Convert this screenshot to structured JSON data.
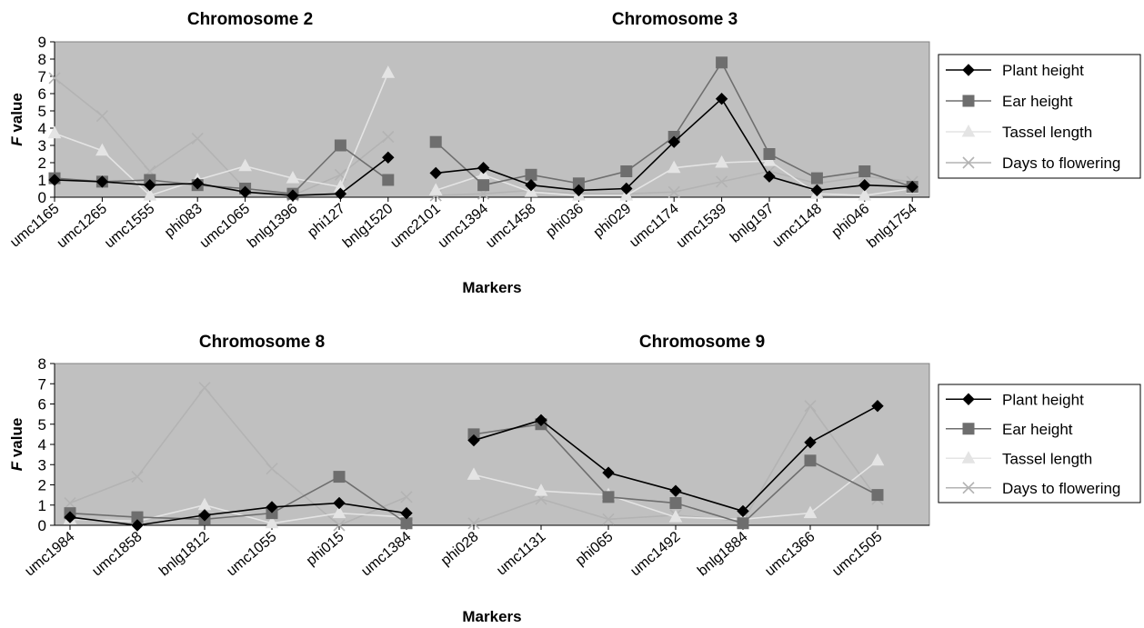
{
  "legend_entries": [
    "Plant height",
    "Ear height",
    "Tassel length",
    "Days to flowering"
  ],
  "series_colors": {
    "Plant height": "#000000",
    "Ear height": "#6e6e6e",
    "Tassel length": "#e4e4e4",
    "Days to flowering": "#b3b3b3"
  },
  "series_markers": {
    "Plant height": "diamond",
    "Ear height": "square",
    "Tassel length": "triangle",
    "Days to flowering": "x"
  },
  "plot_background": "#c0c0c0",
  "chart_data": [
    {
      "type": "line",
      "titles": [
        "Chromosome 2",
        "Chromosome 3"
      ],
      "xlabel": "Markers",
      "ylabel": "F value",
      "ylim": [
        0,
        9
      ],
      "yticks": [
        0,
        1,
        2,
        3,
        4,
        5,
        6,
        7,
        8,
        9
      ],
      "grid": false,
      "legend": "right",
      "categories": [
        "umc1165",
        "umc1265",
        "umc1555",
        "phi083",
        "umc1065",
        "bnlg1396",
        "phi127",
        "bnlg1520",
        "umc2101",
        "umc1394",
        "umc1458",
        "phi036",
        "phi029",
        "umc1174",
        "umc1539",
        "bnlg197",
        "umc1148",
        "phi046",
        "bnlg1754"
      ],
      "segments": [
        [
          0,
          7
        ],
        [
          8,
          18
        ]
      ],
      "series": [
        {
          "name": "Plant height",
          "values": [
            1.0,
            0.9,
            0.7,
            0.8,
            0.3,
            0.1,
            0.2,
            2.3,
            1.4,
            1.7,
            0.7,
            0.4,
            0.5,
            3.2,
            5.7,
            1.2,
            0.4,
            0.7,
            0.6
          ]
        },
        {
          "name": "Ear height",
          "values": [
            1.1,
            0.9,
            1.0,
            0.7,
            0.5,
            0.2,
            3.0,
            1.0,
            3.2,
            0.7,
            1.3,
            0.8,
            1.5,
            3.5,
            7.8,
            2.5,
            1.1,
            1.5,
            0.6
          ]
        },
        {
          "name": "Tassel length",
          "values": [
            3.7,
            2.7,
            0.1,
            1.0,
            1.8,
            1.1,
            0.6,
            7.2,
            0.4,
            1.3,
            0.3,
            0.1,
            0.1,
            1.7,
            2.0,
            2.1,
            0.2,
            0.1,
            0.5
          ]
        },
        {
          "name": "Days to flowering",
          "values": [
            6.9,
            4.7,
            1.5,
            3.4,
            0.5,
            0.1,
            1.3,
            3.5,
            0.1,
            0.2,
            0.4,
            0.2,
            0.2,
            0.3,
            0.9,
            1.5,
            0.8,
            1.2,
            0.9
          ]
        }
      ]
    },
    {
      "type": "line",
      "titles": [
        "Chromosome 8",
        "Chromosome 9"
      ],
      "xlabel": "Markers",
      "ylabel": "F value",
      "ylim": [
        0,
        8
      ],
      "yticks": [
        0,
        1,
        2,
        3,
        4,
        5,
        6,
        7,
        8
      ],
      "grid": false,
      "legend": "right",
      "categories": [
        "umc1984",
        "umc1858",
        "bnlg1812",
        "umc1055",
        "phi015",
        "umc1384",
        "phi028",
        "umc1131",
        "phi065",
        "umc1492",
        "bnlg1884",
        "umc1366",
        "umc1505"
      ],
      "segments": [
        [
          0,
          5
        ],
        [
          6,
          12
        ]
      ],
      "series": [
        {
          "name": "Plant height",
          "values": [
            0.4,
            0.0,
            0.5,
            0.9,
            1.1,
            0.6,
            4.2,
            5.2,
            2.6,
            1.7,
            0.7,
            4.1,
            5.9
          ]
        },
        {
          "name": "Ear height",
          "values": [
            0.6,
            0.4,
            0.3,
            0.6,
            2.4,
            0.1,
            4.5,
            5.0,
            1.4,
            1.1,
            0.1,
            3.2,
            1.5
          ]
        },
        {
          "name": "Tassel length",
          "values": [
            0.3,
            0.2,
            1.0,
            0.1,
            0.6,
            0.4,
            2.5,
            1.7,
            1.5,
            0.4,
            0.3,
            0.6,
            3.2
          ]
        },
        {
          "name": "Days to flowering",
          "values": [
            1.1,
            2.4,
            6.8,
            2.8,
            0.0,
            1.4,
            0.1,
            1.3,
            0.3,
            0.5,
            0.2,
            5.9,
            1.3
          ]
        }
      ]
    }
  ]
}
